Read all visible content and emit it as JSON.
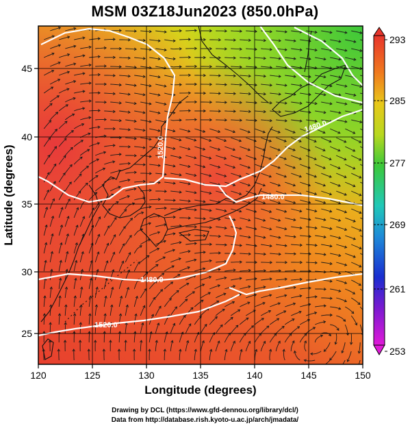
{
  "title": "MSM 03Z18Jun2023 (850.0hPa)",
  "xlabel": "Longitude (degrees)",
  "ylabel": "Latitude  (degrees)",
  "x_ticks": [
    "120",
    "125",
    "130",
    "135",
    "140",
    "145",
    "150"
  ],
  "y_ticks": [
    "25",
    "30",
    "35",
    "40",
    "45"
  ],
  "colorbar_ticks": [
    "293",
    "285",
    "277",
    "269",
    "261",
    "253"
  ],
  "contour_labels": [
    "1520.0",
    "1480.0",
    "1480.0",
    "1480.0",
    "1520.0"
  ],
  "credit_line1": "Drawing by DCL (https://www.gfd-dennou.org/library/dcl/)",
  "credit_line2": "Data from http://database.rish.kyoto-u.ac.jp/arch/jmadata/",
  "colors": {
    "hot": "#e83b2e",
    "warm": "#f08a1e",
    "yellow": "#e6d21a",
    "green": "#3fc23a",
    "contour": "#ffffff"
  },
  "map_data": {
    "lon_range": [
      120,
      150
    ],
    "lat_range": [
      23,
      48
    ]
  }
}
